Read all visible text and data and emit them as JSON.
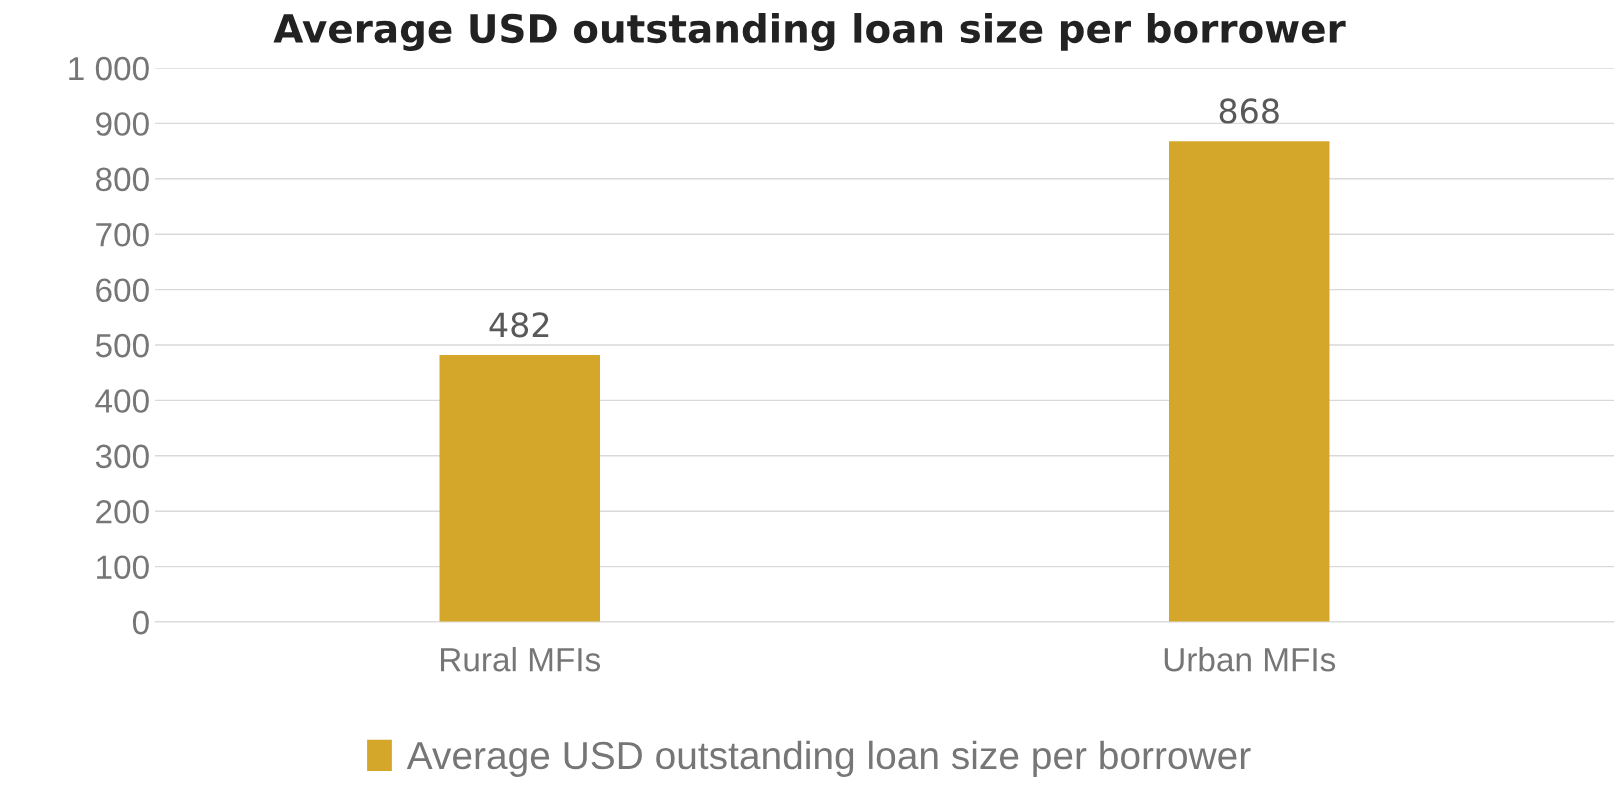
{
  "chart_data": {
    "type": "bar",
    "title": "Average USD outstanding loan size per borrower",
    "categories": [
      "Rural MFIs",
      "Urban MFIs"
    ],
    "series": [
      {
        "name": "Average USD outstanding loan size per borrower",
        "color": "#d4a62a",
        "values": [
          482,
          868
        ]
      }
    ],
    "ylim": [
      0,
      1000
    ],
    "yticks": [
      0,
      100,
      200,
      300,
      400,
      500,
      600,
      700,
      800,
      900,
      {
        "value": 1000,
        "label": "1 000"
      }
    ],
    "grid": "y",
    "legend": "bottom",
    "data_labels": true
  }
}
